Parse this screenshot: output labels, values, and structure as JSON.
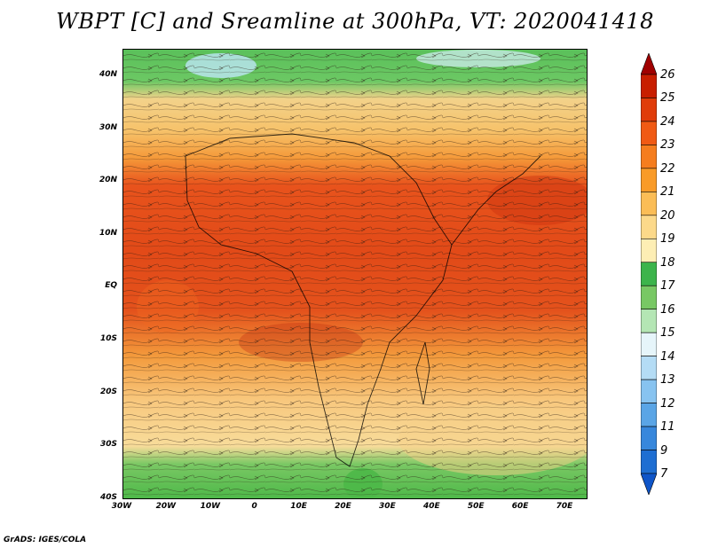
{
  "title": "WBPT [C] and Sreamline at 300hPa, VT: 2020041418",
  "footer": "GrADS: IGES/COLA",
  "map": {
    "lat_ticks": [
      "40N",
      "30N",
      "20N",
      "10N",
      "EQ",
      "10S",
      "20S",
      "30S",
      "40S"
    ],
    "lon_ticks": [
      "30W",
      "20W",
      "10W",
      "0",
      "10E",
      "20E",
      "30E",
      "40E",
      "50E",
      "60E",
      "70E"
    ],
    "lat_range": [
      -40,
      45
    ],
    "lon_range": [
      -30,
      75
    ]
  },
  "colorbar": {
    "labels": [
      "26",
      "25",
      "24",
      "23",
      "22",
      "21",
      "20",
      "19",
      "18",
      "17",
      "16",
      "15",
      "14",
      "13",
      "12",
      "11",
      "9",
      "7"
    ],
    "colors": [
      "#a00000",
      "#c81e00",
      "#e03c0a",
      "#f05a14",
      "#f57d1e",
      "#f99b28",
      "#fbbd56",
      "#fcd98a",
      "#fdeeb4",
      "#3cb44b",
      "#78c864",
      "#b4e6b4",
      "#e6f5fa",
      "#b4dcf5",
      "#87c3f0",
      "#5aa5e6",
      "#3787dc",
      "#1e6ed2",
      "#0f55c8"
    ]
  }
}
